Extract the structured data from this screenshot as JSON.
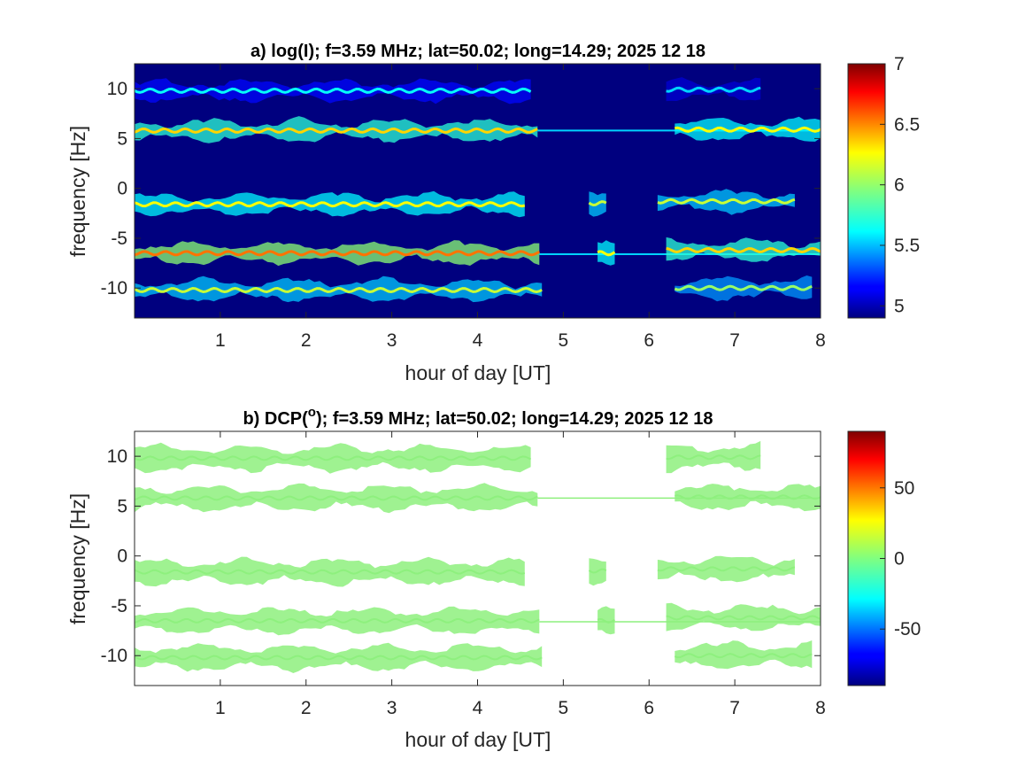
{
  "chart_data": [
    {
      "type": "heatmap",
      "panel_id": "a",
      "title_prefix": "a) log(I); f=3.59 MHz;  lat=50.02; long=14.29; 2025 12 18",
      "xlabel": "hour of day [UT]",
      "ylabel": "frequency [Hz]",
      "xlim": [
        0,
        8
      ],
      "ylim": [
        -13,
        12.5
      ],
      "x_ticks": [
        1,
        2,
        3,
        4,
        5,
        6,
        7,
        8
      ],
      "y_ticks": [
        10,
        5,
        0,
        -5,
        -10
      ],
      "background_color": "#00007f",
      "colorbar": {
        "min": 4.9,
        "max": 7.0,
        "ticks": [
          7,
          6.5,
          6,
          5.5,
          5
        ],
        "colormap": "jet"
      },
      "bands": [
        {
          "center_freq": 9.8,
          "start_hour": 0.0,
          "end_hour": 4.62,
          "value": 5.7
        },
        {
          "center_freq": 9.9,
          "start_hour": 6.2,
          "end_hour": 7.3,
          "value": 5.6
        },
        {
          "center_freq": 5.8,
          "start_hour": 0.0,
          "end_hour": 4.7,
          "value": 6.3
        },
        {
          "center_freq": 5.8,
          "start_hour": 4.7,
          "end_hour": 8.0,
          "value": 5.6,
          "note": "constant line"
        },
        {
          "center_freq": 5.9,
          "start_hour": 6.3,
          "end_hour": 8.0,
          "value": 6.2
        },
        {
          "center_freq": -1.6,
          "start_hour": 0.0,
          "end_hour": 4.55,
          "value": 6.2
        },
        {
          "center_freq": -1.5,
          "start_hour": 5.3,
          "end_hour": 5.5,
          "value": 6.1
        },
        {
          "center_freq": -1.3,
          "start_hour": 6.1,
          "end_hour": 7.7,
          "value": 6.1
        },
        {
          "center_freq": -6.5,
          "start_hour": 0.0,
          "end_hour": 4.72,
          "value": 6.5
        },
        {
          "center_freq": -6.6,
          "start_hour": 4.72,
          "end_hour": 8.0,
          "value": 5.6,
          "note": "constant line"
        },
        {
          "center_freq": -6.5,
          "start_hour": 5.4,
          "end_hour": 5.6,
          "value": 6.2
        },
        {
          "center_freq": -6.2,
          "start_hour": 6.2,
          "end_hour": 8.0,
          "value": 6.3
        },
        {
          "center_freq": -10.2,
          "start_hour": 0.0,
          "end_hour": 4.75,
          "value": 6.1
        },
        {
          "center_freq": -10.0,
          "start_hour": 6.3,
          "end_hour": 7.9,
          "value": 6.0
        }
      ]
    },
    {
      "type": "heatmap",
      "panel_id": "b",
      "title_prefix": "b) DCP(",
      "title_superscript": "o",
      "title_suffix": "); f=3.59 MHz;  lat=50.02; long=14.29; 2025 12 18",
      "xlabel": "hour of day [UT]",
      "ylabel": "frequency [Hz]",
      "xlim": [
        0,
        8
      ],
      "ylim": [
        -13,
        12.5
      ],
      "x_ticks": [
        1,
        2,
        3,
        4,
        5,
        6,
        7,
        8
      ],
      "y_ticks": [
        10,
        5,
        0,
        -5,
        -10
      ],
      "background_color": "#ffffff",
      "colorbar": {
        "min": -90,
        "max": 90,
        "ticks": [
          50,
          0,
          -50
        ],
        "colormap": "jet"
      },
      "point_color": "#8ef07e",
      "bands": [
        {
          "center_freq": 9.8,
          "start_hour": 0.0,
          "end_hour": 4.62,
          "value": 5
        },
        {
          "center_freq": 9.9,
          "start_hour": 6.2,
          "end_hour": 7.3,
          "value": 5
        },
        {
          "center_freq": 5.8,
          "start_hour": 0.0,
          "end_hour": 4.7,
          "value": 5
        },
        {
          "center_freq": 5.8,
          "start_hour": 4.7,
          "end_hour": 8.0,
          "value": 5,
          "note": "constant line"
        },
        {
          "center_freq": 5.9,
          "start_hour": 6.3,
          "end_hour": 8.0,
          "value": 5
        },
        {
          "center_freq": -1.6,
          "start_hour": 0.0,
          "end_hour": 4.55,
          "value": 5
        },
        {
          "center_freq": -1.5,
          "start_hour": 5.3,
          "end_hour": 5.5,
          "value": 5
        },
        {
          "center_freq": -1.3,
          "start_hour": 6.1,
          "end_hour": 7.7,
          "value": 5
        },
        {
          "center_freq": -6.5,
          "start_hour": 0.0,
          "end_hour": 4.72,
          "value": 5
        },
        {
          "center_freq": -6.6,
          "start_hour": 4.72,
          "end_hour": 8.0,
          "value": 5,
          "note": "constant line"
        },
        {
          "center_freq": -6.5,
          "start_hour": 5.4,
          "end_hour": 5.6,
          "value": 5
        },
        {
          "center_freq": -6.2,
          "start_hour": 6.2,
          "end_hour": 8.0,
          "value": 5
        },
        {
          "center_freq": -10.2,
          "start_hour": 0.0,
          "end_hour": 4.75,
          "value": 5
        },
        {
          "center_freq": -10.0,
          "start_hour": 6.3,
          "end_hour": 7.9,
          "value": 5
        }
      ]
    }
  ]
}
